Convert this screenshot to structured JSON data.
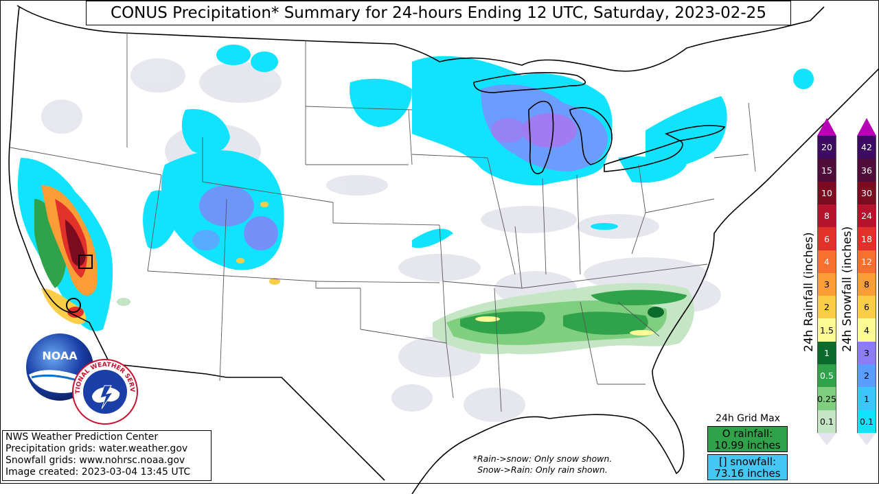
{
  "title": "CONUS Precipitation* Summary for 24-hours Ending 12 UTC, Saturday, 2023-02-25",
  "credits": [
    "NWS Weather Prediction Center",
    "Precipitation grids: water.weather.gov",
    "Snowfall grids: www.nohrsc.noaa.gov",
    "Image created: 2023-03-04 13:45 UTC"
  ],
  "note": {
    "line1": "*Rain->snow: Only snow shown.",
    "line2": "Snow->Rain: Only rain shown."
  },
  "grid_max": {
    "title": "24h Grid Max",
    "rain_line1": "O rainfall:",
    "rain_line2": "10.99 inches",
    "snow_line1": "[] snowfall:",
    "snow_line2": "73.16 inches"
  },
  "rain_scale": {
    "label": "24h Rainfall (inches)",
    "levels": [
      "0.1",
      "0.25",
      "0.5",
      "1",
      "1.5",
      "2",
      "3",
      "4",
      "6",
      "8",
      "10",
      "15",
      "20"
    ],
    "colors": [
      "#c4e6c4",
      "#7fcf7f",
      "#2fa24a",
      "#0b6b2c",
      "#fffb94",
      "#fccd47",
      "#fc9d36",
      "#f86f2e",
      "#e2302a",
      "#b5122b",
      "#7d0b20",
      "#500c3a",
      "#3d0a61"
    ],
    "top_color": "#b600b6"
  },
  "snow_scale": {
    "label": "24h Snowfall (inches)",
    "levels": [
      "0.1",
      "1",
      "2",
      "3",
      "4",
      "6",
      "8",
      "12",
      "18",
      "24",
      "30",
      "36",
      "42"
    ],
    "colors": [
      "#11e3ff",
      "#3bc6ff",
      "#5b9dff",
      "#8c7cf6",
      "#fffb94",
      "#fccd47",
      "#fc9d36",
      "#f86f2e",
      "#e2302a",
      "#b5122b",
      "#7d0b20",
      "#500c3a",
      "#3d0a61"
    ],
    "top_color": "#b600b6"
  },
  "logos": {
    "noaa": "NOAA",
    "nws": "NATIONAL WEATHER SERVICE"
  },
  "colors": {
    "land": "#ffffff",
    "trace": "#e6e6f0",
    "snow_light": "#11e3ff",
    "snow_mid": "#6c9cff",
    "snow_high": "#a07cf0",
    "rain_light": "#c4e6c4",
    "rain_mid": "#2fa24a",
    "rain_dark": "#0b6b2c"
  }
}
